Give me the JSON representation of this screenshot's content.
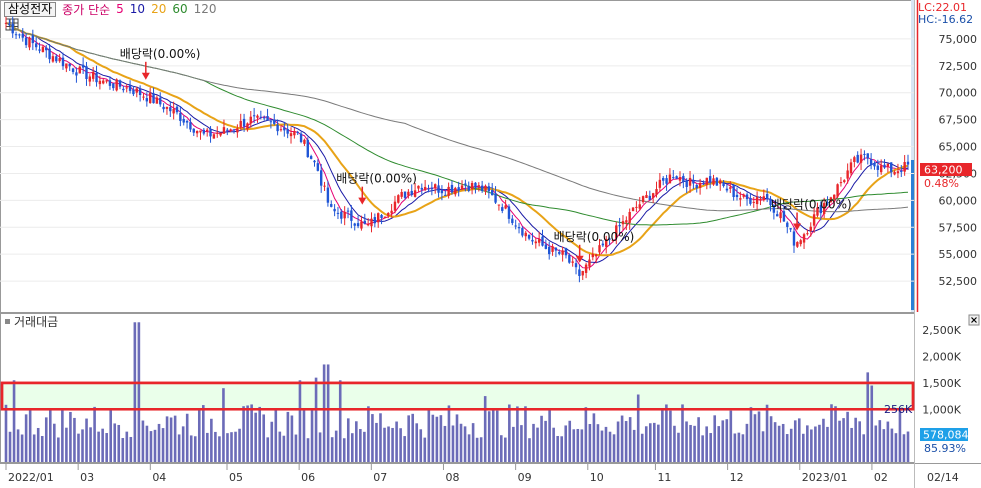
{
  "stock_tag": "삼성전자",
  "legend": {
    "label": "종가 단순",
    "periods": [
      {
        "label": "5",
        "color": "#e60073"
      },
      {
        "label": "10",
        "color": "#1a1aa6"
      },
      {
        "label": "20",
        "color": "#e8a317"
      },
      {
        "label": "60",
        "color": "#2e8b2e"
      },
      {
        "label": "120",
        "color": "#7a7a7a"
      }
    ],
    "label_color": "#cc0066"
  },
  "right_info": {
    "lc": "LC:22.01",
    "hc": "HC:-16.62"
  },
  "price": {
    "current": "63,200",
    "change": "0.48%",
    "highlight": "#e8262a"
  },
  "volume": {
    "title": "거래대금",
    "current": "578,084",
    "ratio": "85.93%",
    "box_label": "256K",
    "highlight": "#1ea0e8"
  },
  "dividend_label": "배당락(0.00%)",
  "x_date_label": "02/14",
  "chart_data": [
    {
      "type": "candlestick",
      "ylim": [
        50000,
        77500
      ],
      "yticks": [
        "52,500",
        "55,000",
        "57,500",
        "60,000",
        "62,500",
        "65,000",
        "67,500",
        "70,000",
        "72,500",
        "75,000"
      ],
      "yvalues": [
        52500,
        55000,
        57500,
        60000,
        62500,
        65000,
        67500,
        70000,
        72500,
        75000
      ],
      "x_ticks": [
        {
          "label": "2022/01",
          "t": 0
        },
        {
          "label": "03",
          "t": 0.08
        },
        {
          "label": "04",
          "t": 0.16
        },
        {
          "label": "05",
          "t": 0.245
        },
        {
          "label": "06",
          "t": 0.325
        },
        {
          "label": "07",
          "t": 0.405
        },
        {
          "label": "08",
          "t": 0.485
        },
        {
          "label": "09",
          "t": 0.565
        },
        {
          "label": "10",
          "t": 0.645
        },
        {
          "label": "11",
          "t": 0.72
        },
        {
          "label": "12",
          "t": 0.8
        },
        {
          "label": "2023/01",
          "t": 0.88
        },
        {
          "label": "02",
          "t": 0.96
        }
      ],
      "price_path": [
        [
          0,
          76500
        ],
        [
          0.02,
          75000
        ],
        [
          0.05,
          73500
        ],
        [
          0.08,
          72000
        ],
        [
          0.11,
          71000
        ],
        [
          0.14,
          70300
        ],
        [
          0.16,
          69500
        ],
        [
          0.19,
          68000
        ],
        [
          0.22,
          66000
        ],
        [
          0.245,
          66500
        ],
        [
          0.27,
          67500
        ],
        [
          0.3,
          67000
        ],
        [
          0.325,
          66000
        ],
        [
          0.345,
          63000
        ],
        [
          0.36,
          59000
        ],
        [
          0.38,
          58500
        ],
        [
          0.4,
          57500
        ],
        [
          0.42,
          59000
        ],
        [
          0.44,
          60500
        ],
        [
          0.46,
          61500
        ],
        [
          0.485,
          61000
        ],
        [
          0.51,
          61500
        ],
        [
          0.53,
          61000
        ],
        [
          0.55,
          59500
        ],
        [
          0.565,
          58000
        ],
        [
          0.58,
          56500
        ],
        [
          0.6,
          55500
        ],
        [
          0.62,
          54800
        ],
        [
          0.635,
          53000
        ],
        [
          0.645,
          54000
        ],
        [
          0.66,
          55500
        ],
        [
          0.68,
          57500
        ],
        [
          0.7,
          59500
        ],
        [
          0.72,
          61000
        ],
        [
          0.74,
          62500
        ],
        [
          0.76,
          61500
        ],
        [
          0.78,
          62000
        ],
        [
          0.8,
          61000
        ],
        [
          0.82,
          60000
        ],
        [
          0.84,
          60500
        ],
        [
          0.86,
          58500
        ],
        [
          0.875,
          56000
        ],
        [
          0.885,
          57000
        ],
        [
          0.9,
          59000
        ],
        [
          0.92,
          61000
        ],
        [
          0.94,
          63500
        ],
        [
          0.955,
          64000
        ],
        [
          0.97,
          63000
        ],
        [
          0.985,
          62800
        ],
        [
          1,
          63200
        ]
      ],
      "dividend_events": [
        {
          "label": "배당락(0.00%)",
          "t": 0.155,
          "price": 71200
        },
        {
          "label": "배당락(0.00%)",
          "t": 0.395,
          "price": 59600
        },
        {
          "label": "배당락(0.00%)",
          "t": 0.636,
          "price": 54200
        },
        {
          "label": "배당락(0.00%)",
          "t": 0.877,
          "price": 57200
        }
      ]
    },
    {
      "type": "bar",
      "ylim": [
        0,
        2750000
      ],
      "yticks": [
        "1,000K",
        "1,500K",
        "2,000K",
        "2,500K"
      ],
      "yvalues": [
        1000000,
        1500000,
        2000000,
        2500000
      ],
      "typical_range": [
        450000,
        1100000
      ],
      "spikes": [
        {
          "t": 0.01,
          "value": 1550000
        },
        {
          "t": 0.145,
          "value": 2650000
        },
        {
          "t": 0.24,
          "value": 1400000
        },
        {
          "t": 0.325,
          "value": 1550000
        },
        {
          "t": 0.345,
          "value": 1600000
        },
        {
          "t": 0.355,
          "value": 1850000
        },
        {
          "t": 0.37,
          "value": 1550000
        },
        {
          "t": 0.53,
          "value": 1250000
        },
        {
          "t": 0.7,
          "value": 1280000
        },
        {
          "t": 0.955,
          "value": 1700000
        },
        {
          "t": 0.96,
          "value": 1450000
        }
      ],
      "box": {
        "from": 1000000,
        "to": 1500000
      },
      "current_value": 578084
    }
  ]
}
